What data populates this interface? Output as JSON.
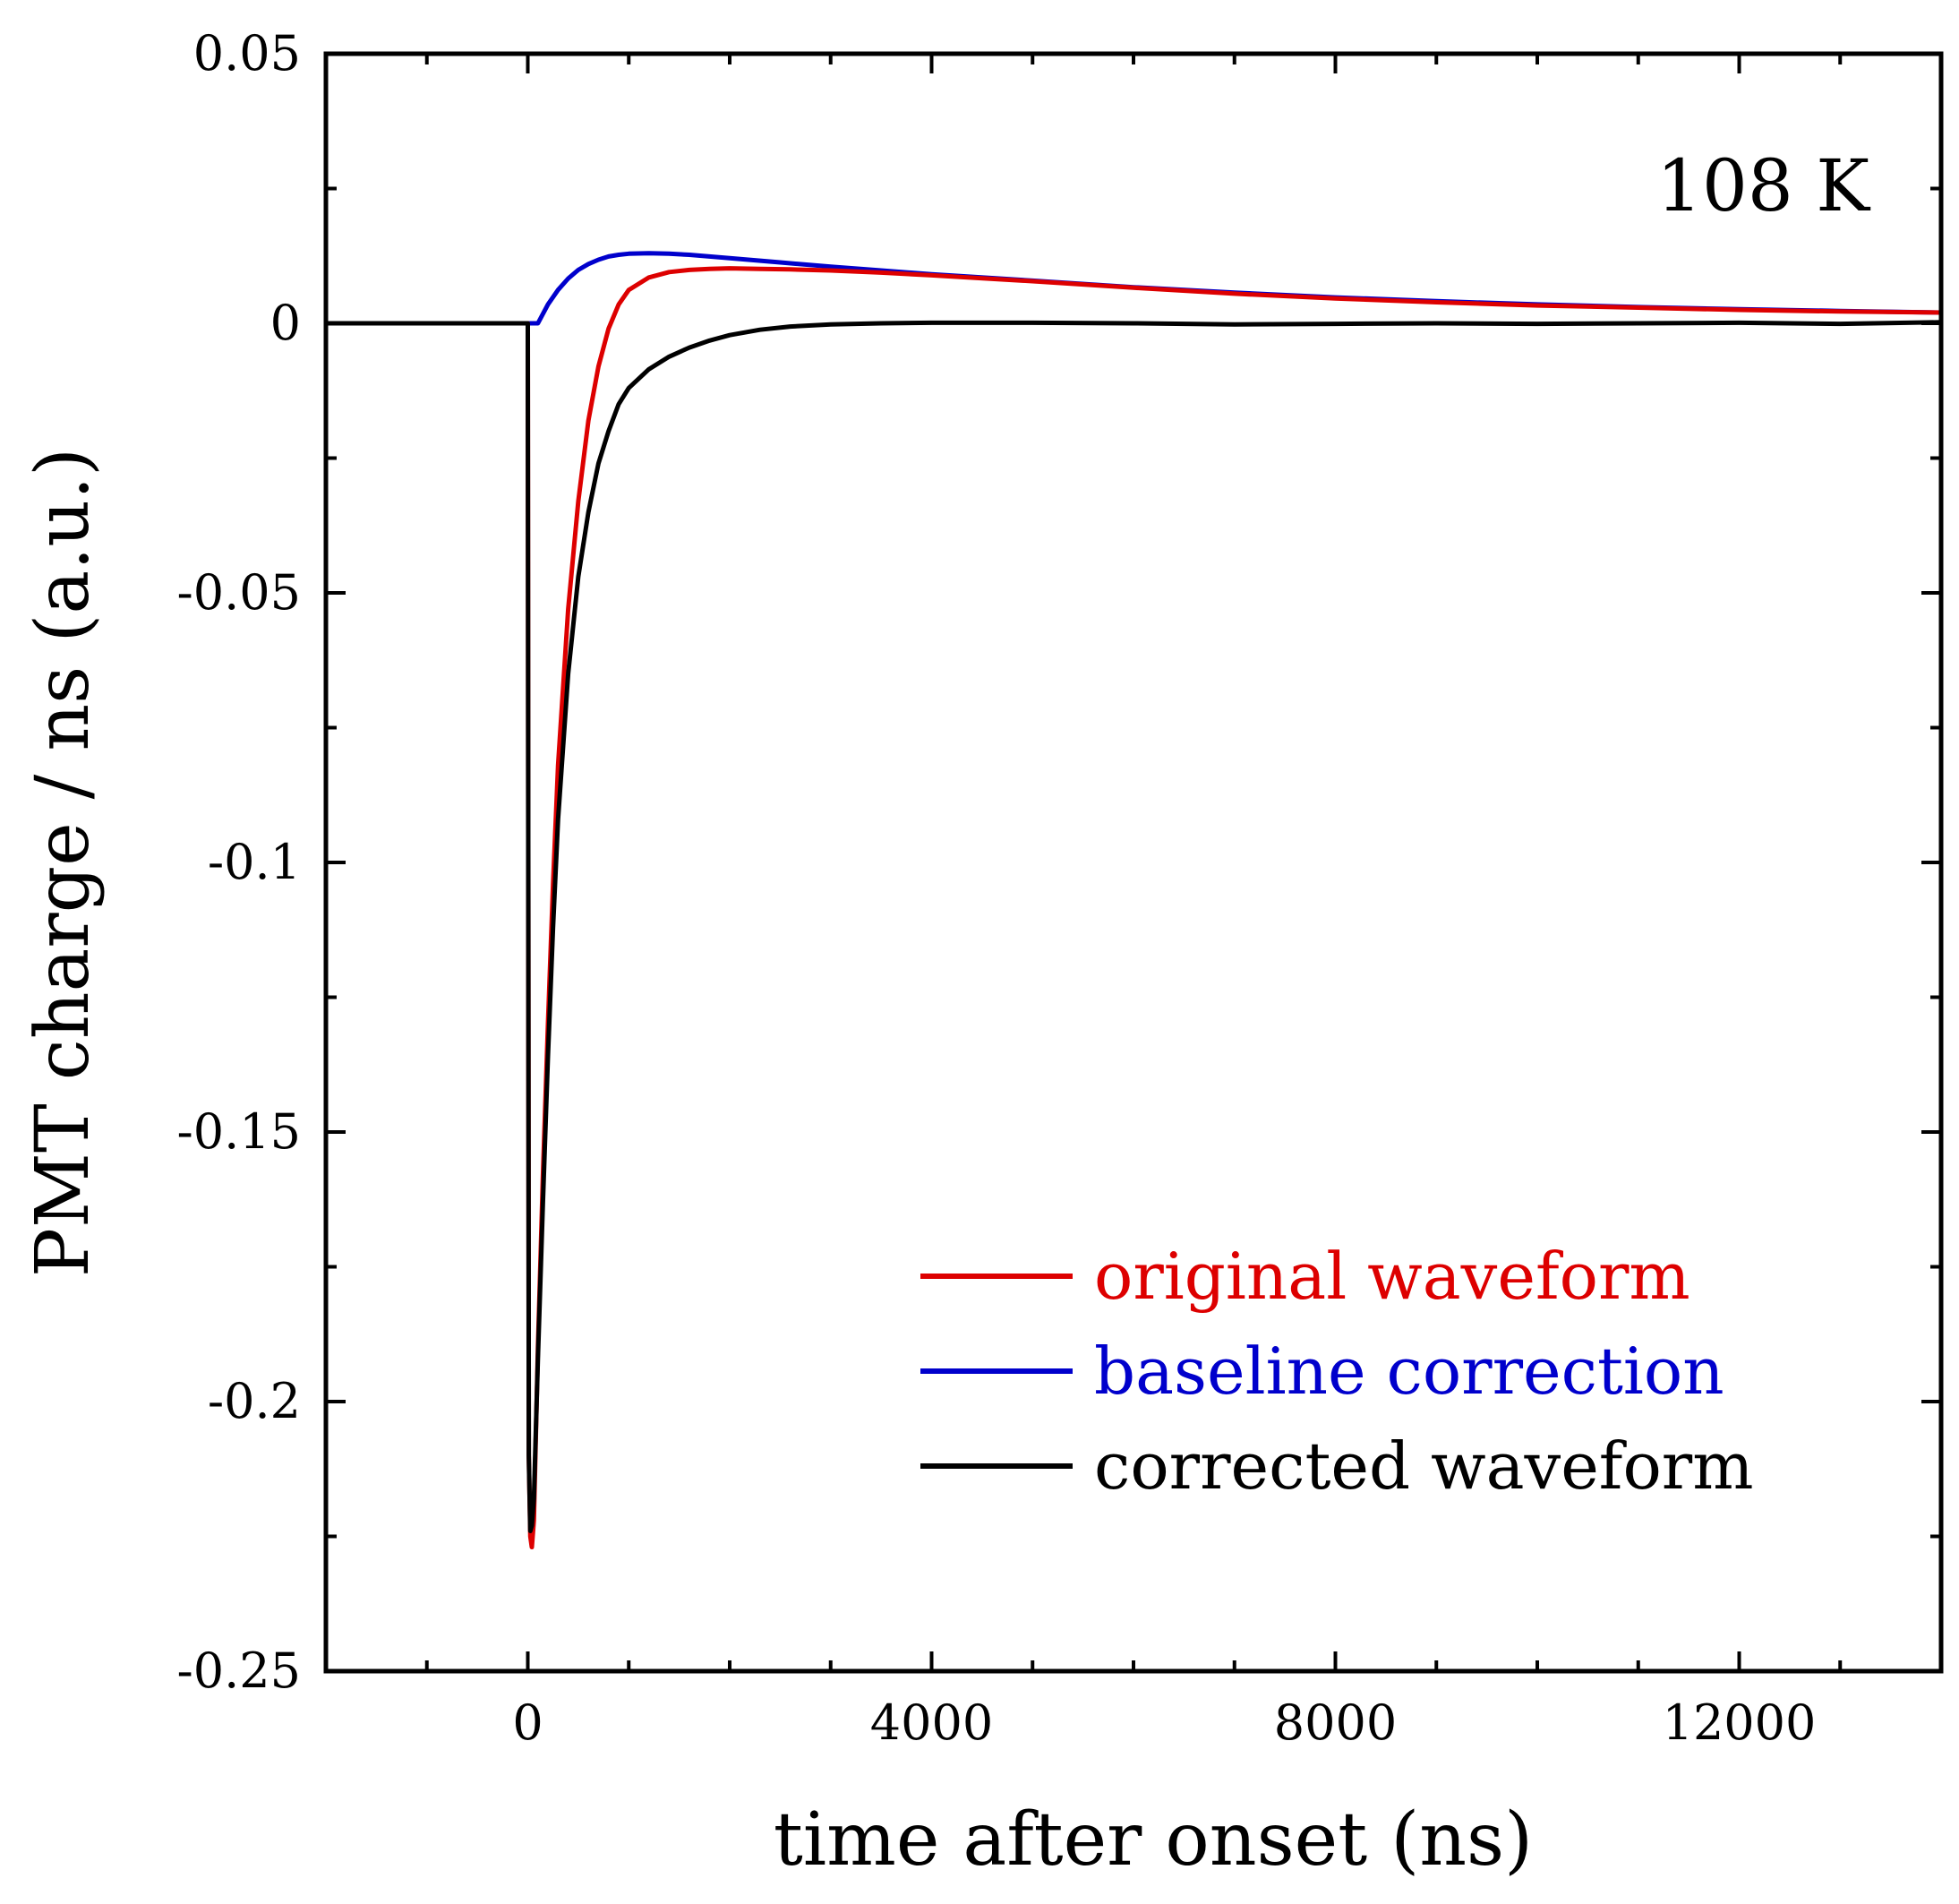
{
  "chart_data": {
    "type": "line",
    "title": "",
    "annotation": "108 K",
    "xlabel": "time after onset (ns)",
    "ylabel": "PMT charge / ns (a.u.)",
    "xlim": [
      -2000,
      14000
    ],
    "ylim": [
      -0.25,
      0.05
    ],
    "x_ticks": [
      0,
      4000,
      8000,
      12000
    ],
    "x_tick_labels": [
      "0",
      "4000",
      "8000",
      "12000"
    ],
    "x_minor_step": 1000,
    "y_ticks": [
      0.05,
      0,
      -0.05,
      -0.1,
      -0.15,
      -0.2,
      -0.25
    ],
    "y_tick_labels": [
      "0.05",
      "0",
      "-0.05",
      "-0.1",
      "-0.15",
      "-0.2",
      "-0.25"
    ],
    "y_minor_step": 0.025,
    "grid": false,
    "legend_position": "bottom-right",
    "series": [
      {
        "name": "original waveform",
        "color": "#dd0000",
        "x": [
          -2000,
          0,
          10,
          25,
          40,
          60,
          100,
          150,
          200,
          250,
          300,
          400,
          500,
          600,
          700,
          800,
          900,
          1000,
          1200,
          1400,
          1600,
          1800,
          2000,
          2300,
          2600,
          3000,
          3500,
          4000,
          5000,
          6000,
          7000,
          8000,
          9000,
          10000,
          11000,
          12000,
          13000,
          14000
        ],
        "y": [
          0,
          0,
          -0.21,
          -0.225,
          -0.227,
          -0.222,
          -0.19,
          -0.158,
          -0.13,
          -0.104,
          -0.082,
          -0.053,
          -0.033,
          -0.018,
          -0.008,
          -0.001,
          0.0035,
          0.0062,
          0.0085,
          0.0095,
          0.0099,
          0.0101,
          0.0102,
          0.0101,
          0.01,
          0.0098,
          0.0094,
          0.0089,
          0.0078,
          0.0066,
          0.0055,
          0.0046,
          0.0039,
          0.0033,
          0.0029,
          0.0025,
          0.0022,
          0.002
        ]
      },
      {
        "name": "baseline correction",
        "color": "#0000cc",
        "x": [
          -2000,
          0,
          100,
          200,
          300,
          400,
          500,
          600,
          700,
          800,
          900,
          1000,
          1200,
          1400,
          1600,
          1800,
          2000,
          2500,
          3000,
          3500,
          4000,
          5000,
          6000,
          7000,
          8000,
          9000,
          10000,
          11000,
          12000,
          13000,
          14000
        ],
        "y": [
          0,
          0,
          0.0,
          0.0035,
          0.0062,
          0.0083,
          0.0099,
          0.011,
          0.0118,
          0.0124,
          0.0127,
          0.0129,
          0.013,
          0.0129,
          0.0127,
          0.0124,
          0.0121,
          0.0113,
          0.0105,
          0.0098,
          0.0091,
          0.0079,
          0.0067,
          0.0057,
          0.0048,
          0.0041,
          0.0035,
          0.003,
          0.0026,
          0.0023,
          0.002
        ]
      },
      {
        "name": "corrected waveform",
        "color": "#000000",
        "x": [
          -2000,
          0,
          10,
          25,
          40,
          60,
          100,
          150,
          200,
          250,
          300,
          400,
          500,
          600,
          700,
          800,
          900,
          1000,
          1200,
          1400,
          1600,
          1800,
          2000,
          2300,
          2600,
          3000,
          3500,
          4000,
          5000,
          6000,
          7000,
          8000,
          9000,
          10000,
          11000,
          12000,
          13000,
          14000
        ],
        "y": [
          0,
          0,
          -0.21,
          -0.224,
          -0.223,
          -0.218,
          -0.192,
          -0.163,
          -0.136,
          -0.112,
          -0.092,
          -0.065,
          -0.047,
          -0.035,
          -0.026,
          -0.02,
          -0.015,
          -0.012,
          -0.0085,
          -0.0062,
          -0.0045,
          -0.0032,
          -0.0022,
          -0.0012,
          -0.0006,
          -0.0002,
          0.0,
          0.0001,
          0.0001,
          0.0,
          -0.0002,
          -0.0001,
          0.0,
          -0.0001,
          0.0,
          0.0001,
          -0.0001,
          0.0002
        ]
      }
    ]
  }
}
